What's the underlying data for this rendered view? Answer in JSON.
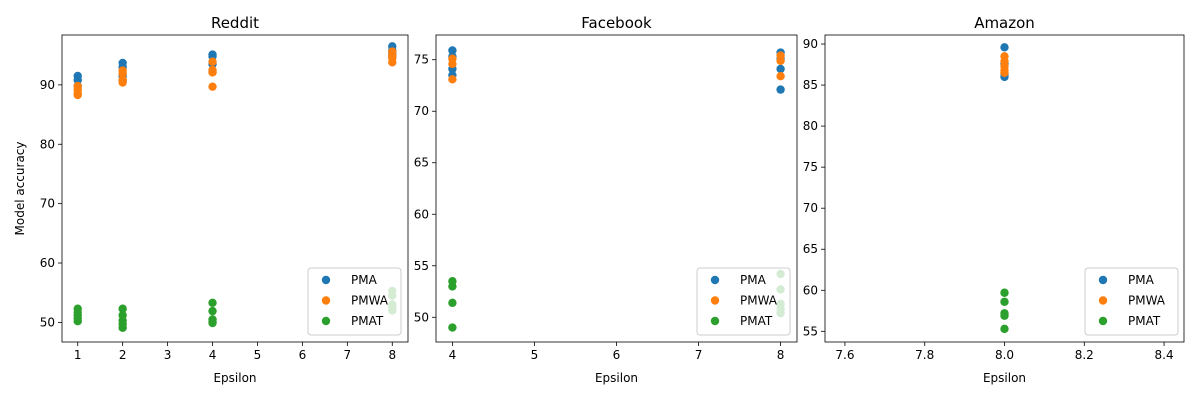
{
  "figure": {
    "ylabel": "Model accuracy",
    "legend_location": "lower right"
  },
  "series_colors": {
    "PMA": "#1f77b4",
    "PMWA": "#ff7f0e",
    "PMAT": "#2ca02c"
  },
  "chart_data": [
    {
      "type": "scatter",
      "title": "Reddit",
      "xlabel": "Epsilon",
      "ylabel": "Model accuracy",
      "xlim": [
        0.65,
        8.35
      ],
      "ylim": [
        46.7,
        98.4
      ],
      "xticks": [
        1,
        2,
        3,
        4,
        5,
        6,
        7,
        8
      ],
      "yticks": [
        50,
        60,
        70,
        80,
        90
      ],
      "legend": [
        "PMA",
        "PMWA",
        "PMAT"
      ],
      "series": [
        {
          "name": "PMA",
          "points": [
            [
              1,
              91.5
            ],
            [
              1,
              90.8
            ],
            [
              1,
              89.8
            ],
            [
              2,
              93.7
            ],
            [
              2,
              93.0
            ],
            [
              2,
              91.5
            ],
            [
              2,
              90.7
            ],
            [
              4,
              95.1
            ],
            [
              4,
              94.8
            ],
            [
              4,
              93.5
            ],
            [
              4,
              92.2
            ],
            [
              8,
              96.5
            ],
            [
              8,
              95.8
            ],
            [
              8,
              95.2
            ],
            [
              8,
              94.8
            ]
          ]
        },
        {
          "name": "PMWA",
          "points": [
            [
              1,
              89.8
            ],
            [
              1,
              89.2
            ],
            [
              1,
              88.6
            ],
            [
              1,
              88.3
            ],
            [
              2,
              92.4
            ],
            [
              2,
              91.9
            ],
            [
              2,
              90.9
            ],
            [
              2,
              90.4
            ],
            [
              4,
              93.9
            ],
            [
              4,
              92.5
            ],
            [
              4,
              92.1
            ],
            [
              4,
              89.7
            ],
            [
              8,
              95.6
            ],
            [
              8,
              95.0
            ],
            [
              8,
              94.5
            ],
            [
              8,
              93.8
            ]
          ]
        },
        {
          "name": "PMAT",
          "points": [
            [
              1,
              52.3
            ],
            [
              1,
              51.7
            ],
            [
              1,
              51.2
            ],
            [
              1,
              50.7
            ],
            [
              1,
              50.2
            ],
            [
              2,
              52.3
            ],
            [
              2,
              51.2
            ],
            [
              2,
              50.3
            ],
            [
              2,
              49.7
            ],
            [
              2,
              49.1
            ],
            [
              4,
              53.3
            ],
            [
              4,
              51.9
            ],
            [
              4,
              50.5
            ],
            [
              4,
              50.1
            ],
            [
              4,
              49.9
            ],
            [
              8,
              55.3
            ],
            [
              8,
              54.5
            ],
            [
              8,
              53.0
            ],
            [
              8,
              52.5
            ],
            [
              8,
              52.0
            ]
          ]
        }
      ]
    },
    {
      "type": "scatter",
      "title": "Facebook",
      "xlabel": "Epsilon",
      "ylabel": "",
      "xlim": [
        3.8,
        8.2
      ],
      "ylim": [
        47.6,
        77.4
      ],
      "xticks": [
        4,
        5,
        6,
        7,
        8
      ],
      "yticks": [
        50,
        55,
        60,
        65,
        70,
        75
      ],
      "legend": [
        "PMA",
        "PMWA",
        "PMAT"
      ],
      "series": [
        {
          "name": "PMA",
          "points": [
            [
              4,
              75.9
            ],
            [
              4,
              75.3
            ],
            [
              4,
              74.1
            ],
            [
              4,
              73.5
            ],
            [
              8,
              75.7
            ],
            [
              8,
              75.1
            ],
            [
              8,
              74.1
            ],
            [
              8,
              72.1
            ]
          ]
        },
        {
          "name": "PMWA",
          "points": [
            [
              4,
              75.1
            ],
            [
              4,
              74.6
            ],
            [
              4,
              73.1
            ],
            [
              8,
              75.4
            ],
            [
              8,
              74.9
            ],
            [
              8,
              73.4
            ]
          ]
        },
        {
          "name": "PMAT",
          "points": [
            [
              4,
              53.5
            ],
            [
              4,
              53.0
            ],
            [
              4,
              51.4
            ],
            [
              4,
              49.0
            ],
            [
              8,
              54.2
            ],
            [
              8,
              52.7
            ],
            [
              8,
              51.3
            ],
            [
              8,
              50.8
            ],
            [
              8,
              50.4
            ]
          ]
        }
      ]
    },
    {
      "type": "scatter",
      "title": "Amazon",
      "xlabel": "Epsilon",
      "ylabel": "",
      "xlim": [
        7.55,
        8.45
      ],
      "ylim": [
        53.7,
        91.1
      ],
      "xticks": [
        7.6,
        7.8,
        8.0,
        8.2,
        8.4
      ],
      "xtick_labels": [
        "7.6",
        "7.8",
        "8.0",
        "8.2",
        "8.4"
      ],
      "yticks": [
        55,
        60,
        65,
        70,
        75,
        80,
        85,
        90
      ],
      "legend": [
        "PMA",
        "PMWA",
        "PMAT"
      ],
      "series": [
        {
          "name": "PMA",
          "points": [
            [
              8,
              89.6
            ],
            [
              8,
              87.6
            ],
            [
              8,
              86.3
            ],
            [
              8,
              86.0
            ]
          ]
        },
        {
          "name": "PMWA",
          "points": [
            [
              8,
              88.5
            ],
            [
              8,
              87.9
            ],
            [
              8,
              87.3
            ],
            [
              8,
              86.8
            ],
            [
              8,
              86.5
            ]
          ]
        },
        {
          "name": "PMAT",
          "points": [
            [
              8,
              59.7
            ],
            [
              8,
              58.6
            ],
            [
              8,
              57.2
            ],
            [
              8,
              56.9
            ],
            [
              8,
              55.3
            ]
          ]
        }
      ]
    }
  ]
}
